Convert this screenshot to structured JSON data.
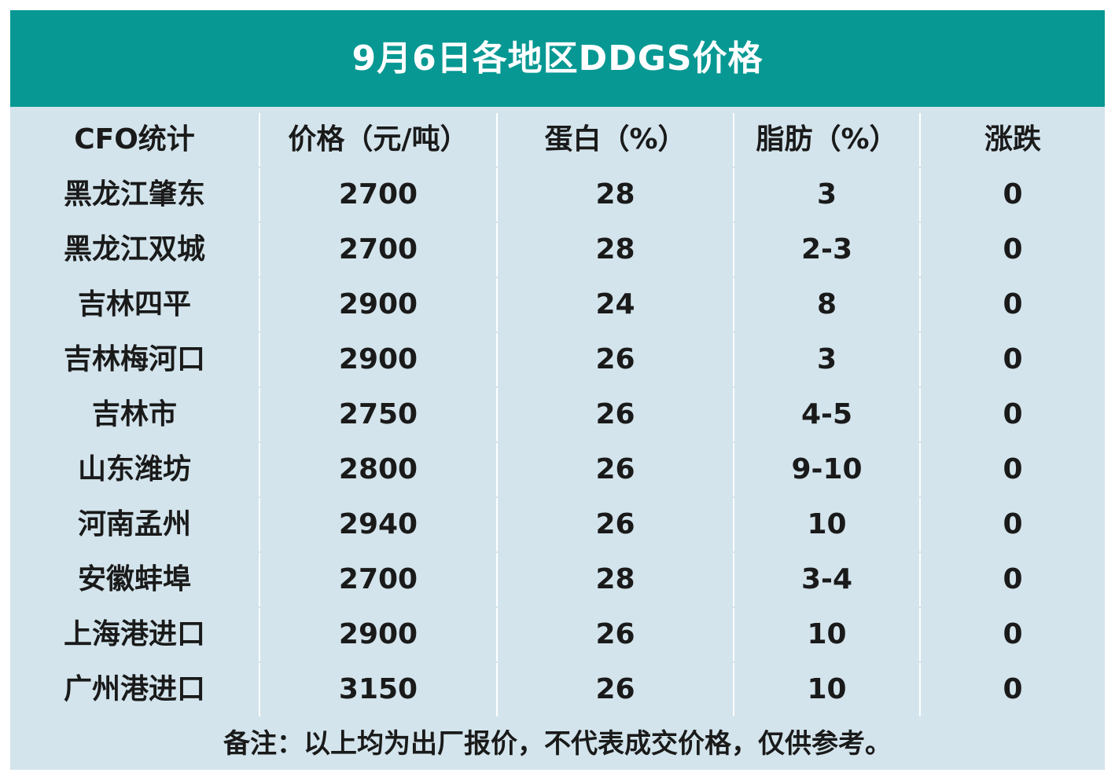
{
  "title": "9月6日各地区DDGS价格",
  "table": {
    "headers": [
      "CFO统计",
      "价格（元/吨）",
      "蛋白（%）",
      "脂肪（%）",
      "涨跌"
    ],
    "rows": [
      [
        "黑龙江肇东",
        "2700",
        "28",
        "3",
        "0"
      ],
      [
        "黑龙江双城",
        "2700",
        "28",
        "2-3",
        "0"
      ],
      [
        "吉林四平",
        "2900",
        "24",
        "8",
        "0"
      ],
      [
        "吉林梅河口",
        "2900",
        "26",
        "3",
        "0"
      ],
      [
        "吉林市",
        "2750",
        "26",
        "4-5",
        "0"
      ],
      [
        "山东潍坊",
        "2800",
        "26",
        "9-10",
        "0"
      ],
      [
        "河南孟州",
        "2940",
        "26",
        "10",
        "0"
      ],
      [
        "安徽蚌埠",
        "2700",
        "28",
        "3-4",
        "0"
      ],
      [
        "上海港进口",
        "2900",
        "26",
        "10",
        "0"
      ],
      [
        "广州港进口",
        "3150",
        "26",
        "10",
        "0"
      ]
    ]
  },
  "footer": "备注：以上均为出厂报价，不代表成交价格，仅供参考。",
  "colors": {
    "title_bg": "#079893",
    "title_text": "#ffffff",
    "table_bg": "#d3e4ec",
    "grid_lines": "#ffffff",
    "cell_text": "#1a1a1a"
  }
}
